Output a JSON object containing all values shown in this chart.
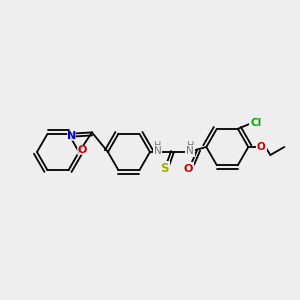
{
  "bg_color": "#eeeeee",
  "fig_width": 3.0,
  "fig_height": 3.0,
  "dpi": 100,
  "bond_lw": 1.3,
  "font_size": 7.5,
  "colors": {
    "C": "#000000",
    "O": "#cc0000",
    "N": "#0000cc",
    "S": "#aaaa00",
    "Cl": "#00aa00",
    "H": "#777777"
  }
}
